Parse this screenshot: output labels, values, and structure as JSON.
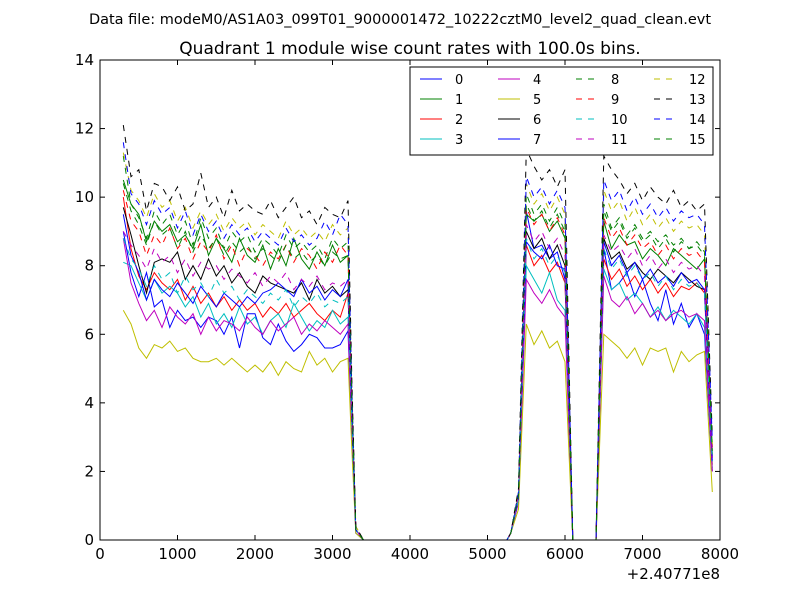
{
  "suptitle": "Data file: modeM0/AS1A03_099T01_9000001472_10222cztM0_level2_quad_clean.evt",
  "chart_data": {
    "type": "line",
    "title": "Quadrant 1 module wise count rates with 100.0s bins.",
    "xlabel": "",
    "ylabel": "",
    "x_offset_label": "+2.40771e8",
    "xlim": [
      0,
      8000
    ],
    "ylim": [
      0,
      14
    ],
    "xticks": [
      "0",
      "1000",
      "2000",
      "3000",
      "4000",
      "5000",
      "6000",
      "7000",
      "8000"
    ],
    "yticks": [
      "0",
      "2",
      "4",
      "6",
      "8",
      "10",
      "12",
      "14"
    ],
    "grid": false,
    "legend_position": "upper-right",
    "x": [
      300,
      400,
      500,
      600,
      700,
      800,
      900,
      1000,
      1100,
      1200,
      1300,
      1400,
      1500,
      1600,
      1700,
      1800,
      1900,
      2000,
      2100,
      2200,
      2300,
      2400,
      2500,
      2600,
      2700,
      2800,
      2900,
      3000,
      3100,
      3200,
      3250,
      3300,
      3400,
      3500,
      4000,
      4500,
      5000,
      5250,
      5300,
      5400,
      5500,
      5600,
      5700,
      5800,
      5900,
      6000,
      6100,
      6200,
      6300,
      6400,
      6500,
      6600,
      6700,
      6800,
      6900,
      7000,
      7100,
      7200,
      7300,
      7400,
      7500,
      7600,
      7700,
      7800,
      7900
    ],
    "series": [
      {
        "name": "0",
        "color": "#0000ff",
        "linestyle": "solid",
        "values": [
          9.0,
          7.8,
          7.1,
          7.8,
          6.8,
          7.0,
          6.2,
          6.7,
          6.4,
          6.5,
          6.2,
          6.5,
          6.4,
          6.0,
          6.5,
          5.6,
          6.6,
          6.6,
          5.9,
          5.7,
          6.3,
          5.8,
          5.5,
          5.7,
          6.0,
          5.9,
          5.6,
          5.6,
          5.7,
          6.1,
          3.0,
          0.2,
          0.0,
          0.0,
          0.0,
          0.0,
          0.0,
          0.0,
          0.2,
          1.2,
          9.6,
          8.5,
          8.6,
          8.2,
          8.4,
          7.6,
          0.0,
          0.0,
          0.0,
          0.0,
          8.5,
          7.3,
          7.5,
          7.8,
          7.1,
          7.6,
          6.9,
          6.4,
          7.3,
          6.3,
          6.9,
          6.2,
          6.6,
          6.0,
          2.0
        ]
      },
      {
        "name": "1",
        "color": "#008000",
        "linestyle": "solid",
        "values": [
          10.5,
          9.8,
          9.5,
          8.7,
          9.3,
          9.0,
          9.2,
          8.7,
          8.9,
          8.5,
          9.2,
          8.3,
          8.8,
          8.5,
          8.1,
          8.8,
          8.3,
          8.1,
          8.6,
          7.9,
          8.5,
          8.0,
          8.8,
          8.2,
          7.9,
          8.4,
          8.0,
          8.6,
          8.1,
          8.3,
          4.0,
          0.3,
          0.0,
          0.0,
          0.0,
          0.0,
          0.0,
          0.0,
          0.2,
          1.3,
          9.5,
          9.3,
          9.5,
          9.0,
          9.3,
          8.8,
          0.0,
          0.0,
          0.0,
          0.0,
          9.3,
          8.5,
          8.9,
          8.6,
          8.7,
          8.2,
          8.5,
          8.3,
          8.0,
          8.5,
          8.3,
          8.1,
          7.9,
          8.2,
          2.5
        ]
      },
      {
        "name": "2",
        "color": "#ff0000",
        "linestyle": "solid",
        "values": [
          10.0,
          8.5,
          7.7,
          7.3,
          7.8,
          7.5,
          7.3,
          7.6,
          7.0,
          7.4,
          6.9,
          7.2,
          6.8,
          7.1,
          6.7,
          7.0,
          6.7,
          6.9,
          6.5,
          6.8,
          6.6,
          6.9,
          6.5,
          6.7,
          6.9,
          6.6,
          6.4,
          6.7,
          6.5,
          7.2,
          3.5,
          0.3,
          0.0,
          0.0,
          0.0,
          0.0,
          0.0,
          0.0,
          0.2,
          1.2,
          8.6,
          8.0,
          8.3,
          7.8,
          8.1,
          7.5,
          0.0,
          0.0,
          0.0,
          0.0,
          8.2,
          7.6,
          7.9,
          7.4,
          7.7,
          7.3,
          7.6,
          7.2,
          7.5,
          7.1,
          7.4,
          7.3,
          7.5,
          7.2,
          2.2
        ]
      },
      {
        "name": "3",
        "color": "#00bfbf",
        "linestyle": "solid",
        "values": [
          8.1,
          8.0,
          7.5,
          7.0,
          7.6,
          7.2,
          7.4,
          7.2,
          6.8,
          7.1,
          6.5,
          6.9,
          6.3,
          6.6,
          6.2,
          6.8,
          6.3,
          6.5,
          6.0,
          6.4,
          6.6,
          6.2,
          6.9,
          6.5,
          6.1,
          6.4,
          6.2,
          6.7,
          6.3,
          6.5,
          3.2,
          0.3,
          0.0,
          0.0,
          0.0,
          0.0,
          0.0,
          0.0,
          0.2,
          1.1,
          8.0,
          7.6,
          7.2,
          7.8,
          7.0,
          6.7,
          0.0,
          0.0,
          0.0,
          0.0,
          7.9,
          7.3,
          7.5,
          7.0,
          7.2,
          6.9,
          6.5,
          6.8,
          6.4,
          6.7,
          6.5,
          6.3,
          6.6,
          6.2,
          2.1
        ]
      },
      {
        "name": "4",
        "color": "#bf00bf",
        "linestyle": "solid",
        "values": [
          8.8,
          7.5,
          6.9,
          6.4,
          6.7,
          6.2,
          6.8,
          6.5,
          6.3,
          6.6,
          6.0,
          6.5,
          6.1,
          6.4,
          6.3,
          6.1,
          6.5,
          6.2,
          6.0,
          6.4,
          6.1,
          6.3,
          6.5,
          6.0,
          6.3,
          6.1,
          6.4,
          6.2,
          6.0,
          6.3,
          3.1,
          0.3,
          0.0,
          0.0,
          0.0,
          0.0,
          0.0,
          0.0,
          0.2,
          1.1,
          7.6,
          7.2,
          6.9,
          7.3,
          6.8,
          6.5,
          0.0,
          0.0,
          0.0,
          0.0,
          7.7,
          7.0,
          6.8,
          7.1,
          6.6,
          6.9,
          6.5,
          6.7,
          6.4,
          6.6,
          6.7,
          6.5,
          6.6,
          6.4,
          2.0
        ]
      },
      {
        "name": "5",
        "color": "#bfbf00",
        "linestyle": "solid",
        "values": [
          6.7,
          6.3,
          5.6,
          5.3,
          5.7,
          5.6,
          5.8,
          5.5,
          5.6,
          5.3,
          5.2,
          5.2,
          5.3,
          5.1,
          5.3,
          5.1,
          4.9,
          5.1,
          4.9,
          5.2,
          4.8,
          5.2,
          5.0,
          4.9,
          5.5,
          5.1,
          5.3,
          4.9,
          5.2,
          5.3,
          2.6,
          0.2,
          0.0,
          0.0,
          0.0,
          0.0,
          0.0,
          0.0,
          0.2,
          0.9,
          6.3,
          5.7,
          6.1,
          5.6,
          5.8,
          5.2,
          0.0,
          0.0,
          0.0,
          0.0,
          6.0,
          5.8,
          5.6,
          5.3,
          5.6,
          5.1,
          5.6,
          5.5,
          5.6,
          4.9,
          5.5,
          5.2,
          5.4,
          5.5,
          1.4
        ]
      },
      {
        "name": "6",
        "color": "#000000",
        "linestyle": "solid",
        "values": [
          9.7,
          8.9,
          8.0,
          7.2,
          8.1,
          8.2,
          8.1,
          8.4,
          7.6,
          8.0,
          7.6,
          8.2,
          7.7,
          8.0,
          7.5,
          7.8,
          7.4,
          7.2,
          7.7,
          7.5,
          7.4,
          7.3,
          7.2,
          7.5,
          7.0,
          7.6,
          7.2,
          7.4,
          7.1,
          7.3,
          3.6,
          0.3,
          0.0,
          0.0,
          0.0,
          0.0,
          0.0,
          0.0,
          0.2,
          1.3,
          9.0,
          8.5,
          8.8,
          8.2,
          8.6,
          8.0,
          0.0,
          0.0,
          0.0,
          0.0,
          8.8,
          8.2,
          8.4,
          7.9,
          8.1,
          7.8,
          7.6,
          7.9,
          7.7,
          7.5,
          7.8,
          7.6,
          7.4,
          7.3,
          2.4
        ]
      },
      {
        "name": "7",
        "color": "#0000ff",
        "linestyle": "solid",
        "values": [
          9.5,
          8.3,
          7.8,
          7.0,
          7.6,
          7.3,
          7.1,
          7.5,
          7.2,
          6.9,
          7.4,
          7.1,
          6.8,
          7.2,
          7.0,
          6.8,
          7.1,
          6.9,
          7.2,
          7.3,
          7.5,
          7.3,
          7.1,
          7.6,
          7.2,
          7.4,
          7.0,
          7.3,
          7.1,
          7.6,
          3.5,
          0.3,
          0.0,
          0.0,
          0.0,
          0.0,
          0.0,
          0.0,
          0.2,
          1.2,
          8.7,
          8.4,
          8.2,
          8.6,
          8.0,
          7.9,
          0.0,
          0.0,
          0.0,
          0.0,
          8.7,
          8.0,
          8.3,
          7.8,
          8.1,
          7.6,
          7.9,
          7.5,
          7.7,
          7.4,
          7.8,
          7.5,
          7.6,
          7.3,
          2.3
        ]
      },
      {
        "name": "8",
        "color": "#008000",
        "linestyle": "dashed",
        "values": [
          11.2,
          9.8,
          9.4,
          8.8,
          9.6,
          9.2,
          9.5,
          8.9,
          9.3,
          8.6,
          9.4,
          8.8,
          9.1,
          8.5,
          9.0,
          8.7,
          8.9,
          8.4,
          8.8,
          8.6,
          8.3,
          8.9,
          8.5,
          8.7,
          8.4,
          8.6,
          8.2,
          8.8,
          8.5,
          8.7,
          4.2,
          0.3,
          0.0,
          0.0,
          0.0,
          0.0,
          0.0,
          0.0,
          0.2,
          1.4,
          10.1,
          9.5,
          9.8,
          9.3,
          9.7,
          9.2,
          0.0,
          0.0,
          0.0,
          0.0,
          9.8,
          9.1,
          9.4,
          8.9,
          9.2,
          8.8,
          9.0,
          8.7,
          8.9,
          8.6,
          8.8,
          8.5,
          8.7,
          8.4,
          2.7
        ]
      },
      {
        "name": "9",
        "color": "#ff0000",
        "linestyle": "dashed",
        "values": [
          10.2,
          9.3,
          9.0,
          8.3,
          8.9,
          8.6,
          9.1,
          8.5,
          8.8,
          8.2,
          8.7,
          8.4,
          8.9,
          8.2,
          8.6,
          8.0,
          8.5,
          8.3,
          8.0,
          8.4,
          8.2,
          8.6,
          8.1,
          8.5,
          8.3,
          7.9,
          8.4,
          8.1,
          8.6,
          8.3,
          4.0,
          0.3,
          0.0,
          0.0,
          0.0,
          0.0,
          0.0,
          0.0,
          0.2,
          1.3,
          9.7,
          9.2,
          9.5,
          9.0,
          9.4,
          8.9,
          0.0,
          0.0,
          0.0,
          0.0,
          9.4,
          8.8,
          9.1,
          8.6,
          8.9,
          8.5,
          8.7,
          8.3,
          8.6,
          8.2,
          8.5,
          8.3,
          8.4,
          8.1,
          2.6
        ]
      },
      {
        "name": "10",
        "color": "#00bfbf",
        "linestyle": "dashed",
        "values": [
          8.8,
          8.2,
          7.9,
          7.4,
          8.0,
          7.6,
          7.8,
          7.2,
          7.7,
          7.3,
          7.5,
          7.1,
          7.6,
          7.2,
          7.4,
          7.0,
          7.3,
          7.1,
          6.9,
          7.2,
          7.0,
          7.3,
          6.8,
          7.1,
          6.9,
          7.2,
          6.8,
          7.0,
          6.9,
          7.1,
          3.4,
          0.3,
          0.0,
          0.0,
          0.0,
          0.0,
          0.0,
          0.0,
          0.2,
          1.2,
          8.8,
          8.2,
          8.5,
          8.0,
          8.3,
          7.8,
          0.0,
          0.0,
          0.0,
          0.0,
          8.5,
          7.9,
          8.2,
          7.7,
          8.0,
          7.6,
          7.8,
          7.4,
          7.7,
          7.3,
          7.6,
          7.4,
          7.5,
          7.2,
          2.3
        ]
      },
      {
        "name": "11",
        "color": "#bf00bf",
        "linestyle": "dashed",
        "values": [
          9.0,
          8.6,
          8.3,
          7.9,
          8.5,
          8.1,
          8.3,
          7.8,
          8.2,
          7.7,
          8.1,
          7.9,
          8.0,
          7.6,
          7.9,
          7.7,
          7.5,
          7.8,
          7.4,
          7.7,
          7.5,
          7.8,
          7.3,
          7.6,
          7.4,
          7.7,
          7.3,
          7.5,
          7.4,
          7.6,
          3.7,
          0.3,
          0.0,
          0.0,
          0.0,
          0.0,
          0.0,
          0.0,
          0.2,
          1.3,
          9.2,
          8.7,
          9.0,
          8.5,
          8.8,
          8.3,
          0.0,
          0.0,
          0.0,
          0.0,
          8.9,
          8.4,
          8.6,
          8.2,
          8.5,
          8.0,
          8.3,
          7.9,
          8.2,
          7.8,
          8.1,
          7.9,
          8.0,
          7.7,
          2.4
        ]
      },
      {
        "name": "12",
        "color": "#bfbf00",
        "linestyle": "dashed",
        "values": [
          11.3,
          10.2,
          9.9,
          9.4,
          10.1,
          9.7,
          9.9,
          9.3,
          9.7,
          9.1,
          9.6,
          9.2,
          9.5,
          9.0,
          9.4,
          9.1,
          9.3,
          8.9,
          9.2,
          9.0,
          8.8,
          9.3,
          8.9,
          9.1,
          8.8,
          9.0,
          8.7,
          9.2,
          8.9,
          9.1,
          4.4,
          0.4,
          0.0,
          0.0,
          0.0,
          0.0,
          0.0,
          0.0,
          0.2,
          1.4,
          10.4,
          9.8,
          10.1,
          9.6,
          10.0,
          9.5,
          0.0,
          0.0,
          0.0,
          0.0,
          10.2,
          9.6,
          9.9,
          9.3,
          9.7,
          9.2,
          9.5,
          9.1,
          9.4,
          9.0,
          9.3,
          9.1,
          9.2,
          8.9,
          2.8
        ]
      },
      {
        "name": "13",
        "color": "#000000",
        "linestyle": "dashed",
        "values": [
          12.1,
          10.6,
          10.8,
          9.6,
          10.4,
          10.3,
          9.9,
          10.3,
          9.6,
          9.8,
          10.7,
          9.7,
          10.0,
          9.4,
          10.2,
          9.6,
          9.8,
          9.6,
          9.5,
          9.9,
          9.4,
          9.7,
          10.0,
          9.4,
          9.6,
          9.2,
          9.7,
          9.5,
          9.4,
          9.9,
          4.6,
          0.4,
          0.0,
          0.0,
          0.0,
          0.0,
          0.0,
          0.0,
          0.2,
          1.5,
          11.4,
          10.9,
          10.5,
          10.8,
          10.3,
          10.8,
          0.0,
          0.0,
          0.0,
          0.0,
          11.2,
          10.8,
          10.5,
          10.1,
          10.4,
          9.9,
          10.3,
          10.0,
          9.8,
          10.2,
          9.7,
          9.9,
          9.6,
          9.8,
          3.0
        ]
      },
      {
        "name": "14",
        "color": "#0000ff",
        "linestyle": "dashed",
        "values": [
          11.6,
          10.1,
          9.8,
          9.2,
          9.9,
          9.5,
          9.7,
          9.1,
          9.6,
          8.9,
          9.5,
          9.0,
          9.3,
          8.8,
          9.2,
          8.9,
          9.1,
          8.7,
          9.0,
          8.8,
          8.6,
          9.1,
          8.7,
          8.9,
          8.6,
          8.8,
          9.3,
          8.9,
          9.5,
          9.2,
          4.3,
          0.3,
          0.0,
          0.0,
          0.0,
          0.0,
          0.0,
          0.0,
          0.2,
          1.4,
          10.6,
          10.0,
          10.3,
          9.8,
          10.2,
          9.7,
          0.0,
          0.0,
          0.0,
          0.0,
          10.5,
          9.9,
          10.2,
          9.6,
          10.0,
          9.5,
          9.8,
          9.4,
          9.7,
          9.3,
          9.6,
          9.4,
          9.5,
          9.2,
          2.9
        ]
      },
      {
        "name": "15",
        "color": "#008000",
        "linestyle": "dashed",
        "values": [
          10.4,
          9.6,
          9.2,
          8.6,
          9.3,
          8.9,
          9.1,
          8.5,
          9.0,
          8.4,
          8.9,
          8.5,
          8.8,
          8.3,
          8.7,
          8.4,
          8.6,
          8.2,
          8.5,
          8.3,
          8.1,
          8.6,
          8.2,
          8.4,
          8.1,
          8.3,
          8.0,
          8.4,
          8.2,
          8.3,
          4.0,
          0.3,
          0.0,
          0.0,
          0.0,
          0.0,
          0.0,
          0.0,
          0.2,
          1.3,
          9.8,
          9.3,
          9.6,
          9.1,
          9.5,
          9.0,
          0.0,
          0.0,
          0.0,
          0.0,
          9.6,
          9.0,
          9.3,
          8.8,
          9.1,
          8.7,
          8.9,
          8.5,
          8.8,
          8.4,
          8.7,
          8.5,
          8.6,
          8.3,
          2.6
        ]
      }
    ]
  }
}
